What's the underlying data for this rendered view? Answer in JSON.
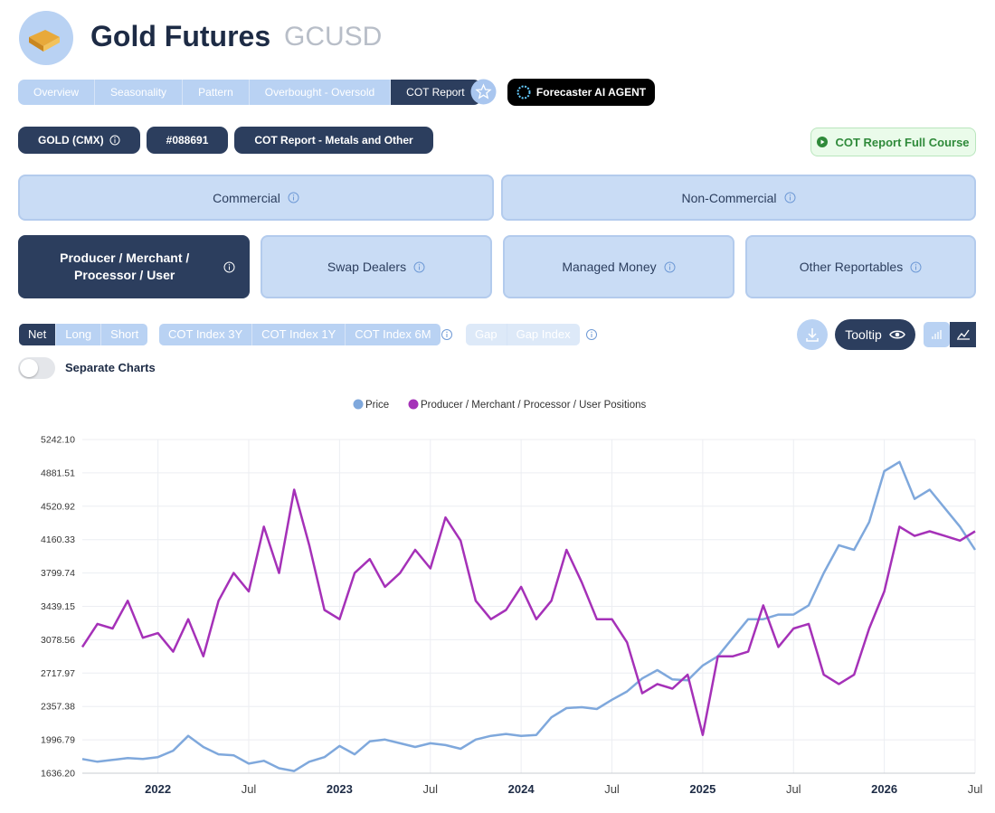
{
  "header": {
    "title": "Gold Futures",
    "symbol": "GCUSD"
  },
  "tabs": [
    "Overview",
    "Seasonality",
    "Pattern",
    "Overbought - Oversold",
    "COT Report"
  ],
  "ai_button": "Forecaster AI AGENT",
  "chips": [
    "GOLD (CMX)",
    "#088691",
    "COT Report - Metals and Other"
  ],
  "course_button": "COT Report Full Course",
  "groups": [
    "Commercial",
    "Non-Commercial"
  ],
  "subgroups": [
    "Producer / Merchant / Processor / User",
    "Swap Dealers",
    "Managed Money",
    "Other Reportables"
  ],
  "modes": [
    "Net",
    "Long",
    "Short"
  ],
  "index_buttons": [
    "COT Index 3Y",
    "COT Index 1Y",
    "COT Index 6M"
  ],
  "gap_buttons": [
    "Gap",
    "Gap Index"
  ],
  "tooltip_button": "Tooltip",
  "toggle_label": "Separate Charts",
  "chart_data": {
    "type": "line",
    "x": [
      "2021-08",
      "2021-09",
      "2021-10",
      "2021-11",
      "2021-12",
      "2022-01",
      "2022-02",
      "2022-03",
      "2022-04",
      "2022-05",
      "2022-06",
      "2022-07",
      "2022-08",
      "2022-09",
      "2022-10",
      "2022-11",
      "2022-12",
      "2023-01",
      "2023-02",
      "2023-03",
      "2023-04",
      "2023-05",
      "2023-06",
      "2023-07",
      "2023-08",
      "2023-09",
      "2023-10",
      "2023-11",
      "2023-12",
      "2024-01",
      "2024-02",
      "2024-03",
      "2024-04",
      "2024-05",
      "2024-06",
      "2024-07",
      "2024-08",
      "2024-09",
      "2024-10",
      "2024-11",
      "2024-12",
      "2025-01",
      "2025-02",
      "2025-03",
      "2025-04",
      "2025-05",
      "2025-06",
      "2025-07",
      "2025-08",
      "2025-09",
      "2025-10",
      "2025-11",
      "2025-12",
      "2026-01",
      "2026-02",
      "2026-03",
      "2026-04",
      "2026-05",
      "2026-06",
      "2026-07"
    ],
    "series": [
      {
        "name": "Price",
        "color": "#7fa8dc",
        "values": [
          1790,
          1760,
          1780,
          1800,
          1790,
          1810,
          1880,
          2040,
          1920,
          1840,
          1830,
          1740,
          1770,
          1690,
          1660,
          1760,
          1810,
          1930,
          1840,
          1980,
          2000,
          1960,
          1920,
          1960,
          1940,
          1900,
          2000,
          2040,
          2060,
          2040,
          2050,
          2240,
          2340,
          2350,
          2330,
          2430,
          2520,
          2660,
          2750,
          2650,
          2640,
          2800,
          2900,
          3100,
          3300,
          3300,
          3350,
          3350,
          3450,
          3800,
          4100,
          4050,
          4350,
          4900,
          5000,
          4600,
          4700,
          4500,
          4300,
          4050
        ]
      },
      {
        "name": "Producer / Merchant / Processor / User Positions",
        "color": "#a531b8",
        "values": [
          3000,
          3250,
          3200,
          3500,
          3100,
          3150,
          2950,
          3300,
          2900,
          3500,
          3800,
          3600,
          4300,
          3800,
          4700,
          4100,
          3400,
          3300,
          3800,
          3950,
          3650,
          3800,
          4050,
          3850,
          4400,
          4150,
          3500,
          3300,
          3400,
          3650,
          3300,
          3500,
          4050,
          3700,
          3300,
          3300,
          3050,
          2500,
          2600,
          2550,
          2700,
          2050,
          2900,
          2900,
          2950,
          3450,
          3000,
          3200,
          3250,
          2700,
          2600,
          2700,
          3200,
          3600,
          4300,
          4200,
          4250,
          4200,
          4150,
          4250
        ]
      }
    ],
    "ylim": [
      1636.2,
      5242.1
    ],
    "yticks": [
      {
        "value": 1636.2,
        "label": "1636.20"
      },
      1996.79,
      2357.38,
      2717.97,
      3078.56,
      3439.15,
      3799.74,
      4160.33,
      4520.92,
      4881.51,
      {
        "value": 5242.1,
        "label": "5242.10"
      }
    ],
    "xticks": [
      {
        "value": "2022-01",
        "label": "2022"
      },
      {
        "value": "2022-07",
        "label": "Jul"
      },
      {
        "value": "2023-01",
        "label": "2023"
      },
      {
        "value": "2023-07",
        "label": "Jul"
      },
      {
        "value": "2024-01",
        "label": "2024"
      },
      {
        "value": "2024-07",
        "label": "Jul"
      },
      {
        "value": "2025-01",
        "label": "2025"
      },
      {
        "value": "2025-07",
        "label": "Jul"
      },
      {
        "value": "2026-01",
        "label": "2026"
      },
      {
        "value": "2026-07",
        "label": "Jul"
      }
    ],
    "grid": true,
    "legend": "top"
  }
}
